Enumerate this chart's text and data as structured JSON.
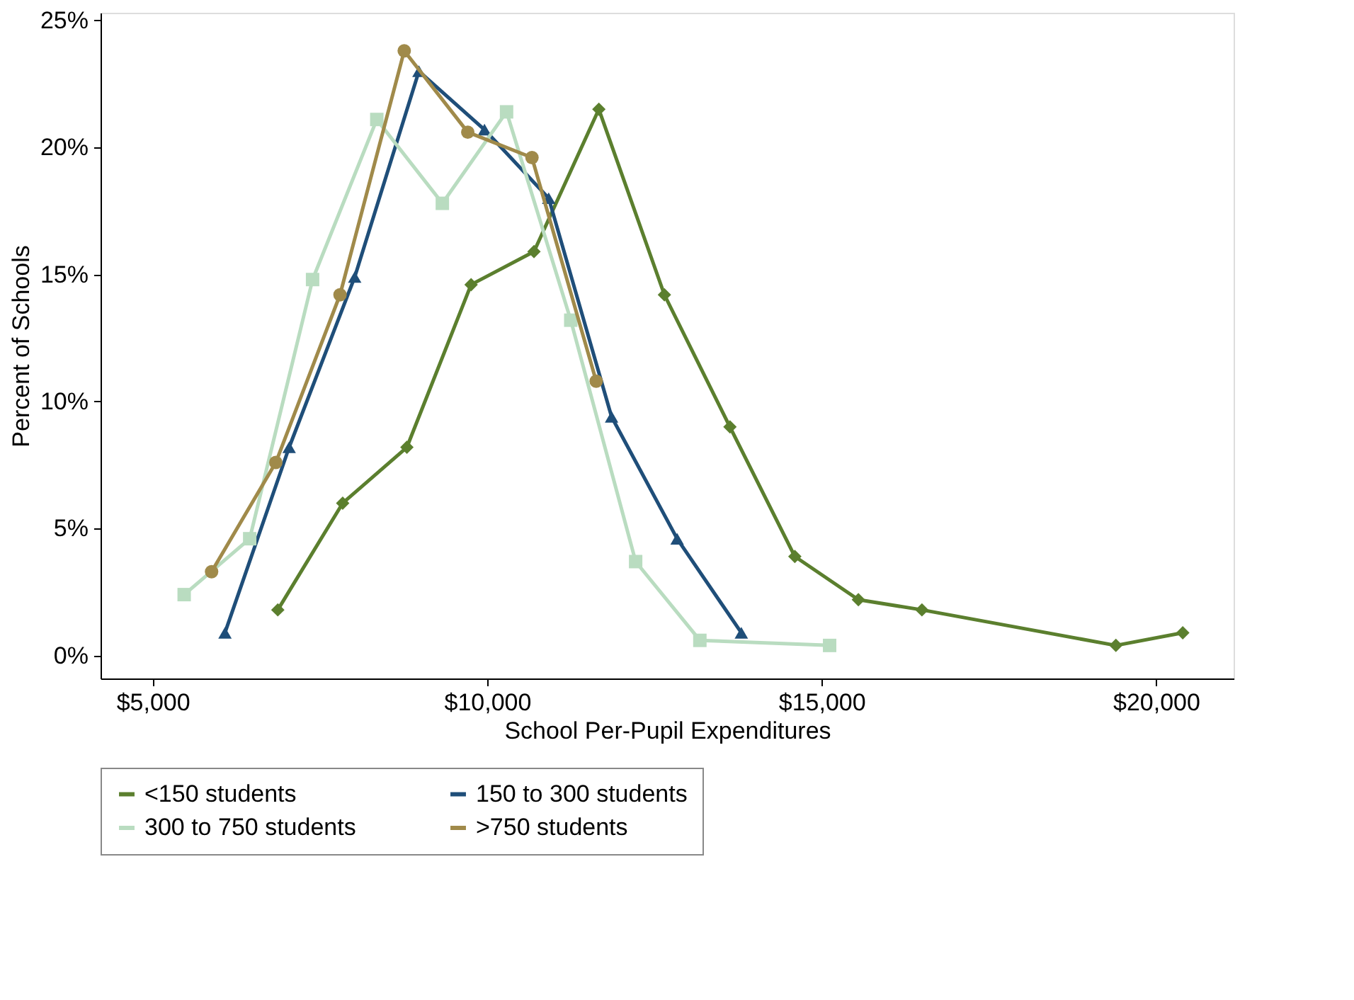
{
  "chart_data": {
    "type": "line",
    "xlabel": "School Per-Pupil Expenditures",
    "ylabel": "Percent of Schools",
    "xlim": [
      4220,
      21160
    ],
    "ylim": [
      -0.9,
      25.3
    ],
    "xticks": [
      {
        "value": 5000,
        "label": "$5,000"
      },
      {
        "value": 10000,
        "label": "$10,000"
      },
      {
        "value": 15000,
        "label": "$15,000"
      },
      {
        "value": 20000,
        "label": "$20,000"
      }
    ],
    "yticks": [
      {
        "value": 0,
        "label": "0%"
      },
      {
        "value": 5,
        "label": "5%"
      },
      {
        "value": 10,
        "label": "10%"
      },
      {
        "value": 15,
        "label": "15%"
      },
      {
        "value": 20,
        "label": "20%"
      },
      {
        "value": 25,
        "label": "25%"
      }
    ],
    "grid": false,
    "legend": "bottom",
    "line_style": "solid",
    "series": [
      {
        "name": "<150 students",
        "color": "#5b7f2e",
        "marker": "diamond",
        "x": [
          6870,
          7840,
          8800,
          9760,
          10700,
          11670,
          12650,
          13630,
          14600,
          15550,
          16500,
          19400,
          20400
        ],
        "values": [
          1.8,
          6.0,
          8.2,
          14.6,
          15.9,
          21.5,
          14.2,
          9.0,
          3.9,
          2.2,
          1.8,
          0.4,
          0.9
        ]
      },
      {
        "name": "150 to 300 students",
        "color": "#1f4e79",
        "marker": "triangle",
        "x": [
          6080,
          7040,
          8020,
          8980,
          9960,
          10920,
          11860,
          12840,
          13800
        ],
        "values": [
          0.9,
          8.2,
          14.9,
          23.0,
          20.7,
          18.0,
          9.4,
          4.6,
          0.9
        ]
      },
      {
        "name": "300 to 750 students",
        "color": "#b9dcc0",
        "marker": "square",
        "x": [
          5470,
          6450,
          7390,
          8350,
          9330,
          10290,
          11250,
          12220,
          13180,
          15120
        ],
        "values": [
          2.4,
          4.6,
          14.8,
          21.1,
          17.8,
          21.4,
          13.2,
          3.7,
          0.6,
          0.4
        ]
      },
      {
        "name": ">750 students",
        "color": "#a08a4a",
        "marker": "circle",
        "x": [
          5880,
          6840,
          7800,
          8760,
          9710,
          10670,
          11630
        ],
        "values": [
          3.3,
          7.6,
          14.2,
          23.8,
          20.6,
          19.6,
          10.8
        ]
      }
    ]
  }
}
